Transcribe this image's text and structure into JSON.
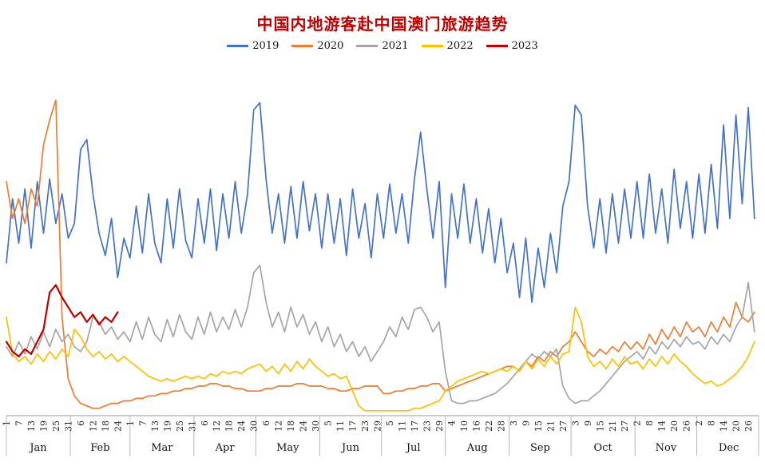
{
  "chart_data": {
    "type": "line",
    "title": "中国内地游客赴中国澳门旅游趋势",
    "title_color": "#c00000",
    "legend": {
      "position": "top",
      "labels": [
        "2019",
        "2020",
        "2021",
        "2022",
        "2023"
      ]
    },
    "x_axis": {
      "kind": "day-of-year",
      "total_days": 366,
      "months": [
        "Jan",
        "Feb",
        "Mar",
        "Apr",
        "May",
        "Jun",
        "Jul",
        "Aug",
        "Sep",
        "Oct",
        "Nov",
        "Dec"
      ],
      "month_start_days": [
        1,
        32,
        61,
        92,
        122,
        153,
        183,
        214,
        245,
        275,
        306,
        336
      ],
      "tick_days": [
        1,
        7,
        13,
        19,
        25,
        31,
        37,
        43,
        49,
        55,
        61,
        67,
        73,
        79,
        85,
        91,
        97,
        103,
        109,
        115,
        121,
        127,
        133,
        139,
        145,
        151,
        157,
        163,
        169,
        175,
        181,
        187,
        193,
        199,
        205,
        211,
        217,
        223,
        229,
        235,
        241,
        247,
        253,
        259,
        265,
        271,
        277,
        283,
        289,
        295,
        301,
        307,
        313,
        319,
        325,
        331,
        337,
        343,
        349,
        355,
        361
      ],
      "tick_labels": [
        "1",
        "7",
        "13",
        "19",
        "25",
        "31",
        "6",
        "12",
        "18",
        "24",
        "1",
        "7",
        "13",
        "19",
        "25",
        "31",
        "6",
        "12",
        "18",
        "24",
        "30",
        "6",
        "12",
        "18",
        "24",
        "30",
        "5",
        "11",
        "17",
        "23",
        "29",
        "5",
        "11",
        "17",
        "23",
        "29",
        "4",
        "10",
        "16",
        "22",
        "28",
        "3",
        "9",
        "15",
        "21",
        "27",
        "3",
        "9",
        "15",
        "21",
        "27",
        "2",
        "8",
        "14",
        "20",
        "26",
        "2",
        "8",
        "14",
        "20",
        "26"
      ]
    },
    "y_axis": {
      "visible": false,
      "plot_min": 0,
      "plot_max": 132
    },
    "grid": false,
    "sampling": {
      "start_day": 1,
      "step_days": 3
    },
    "series": [
      {
        "name": "2019",
        "color": "#4472c4",
        "stroke_width": 1.7,
        "values": [
          62,
          88,
          70,
          92,
          68,
          95,
          74,
          96,
          78,
          90,
          72,
          78,
          108,
          112,
          90,
          74,
          65,
          80,
          56,
          72,
          64,
          85,
          66,
          90,
          70,
          62,
          88,
          68,
          92,
          71,
          64,
          88,
          70,
          92,
          67,
          90,
          72,
          95,
          74,
          90,
          124,
          127,
          96,
          74,
          90,
          70,
          93,
          72,
          95,
          75,
          90,
          68,
          90,
          70,
          88,
          65,
          92,
          72,
          86,
          64,
          90,
          72,
          94,
          74,
          90,
          70,
          96,
          115,
          92,
          72,
          95,
          52,
          90,
          72,
          94,
          70,
          88,
          66,
          84,
          62,
          80,
          58,
          70,
          48,
          72,
          46,
          68,
          52,
          74,
          58,
          85,
          95,
          126,
          122,
          85,
          68,
          88,
          66,
          90,
          70,
          92,
          72,
          95,
          72,
          98,
          74,
          92,
          70,
          100,
          76,
          95,
          72,
          98,
          74,
          102,
          76,
          118,
          80,
          122,
          86,
          125,
          80
        ]
      },
      {
        "name": "2020",
        "color": "#ed7d31",
        "stroke_width": 1.7,
        "values": [
          95,
          80,
          88,
          78,
          92,
          85,
          110,
          120,
          128,
          40,
          15,
          8,
          5,
          4,
          3,
          3,
          4,
          5,
          5,
          6,
          6,
          7,
          7,
          8,
          8,
          9,
          9,
          10,
          10,
          11,
          11,
          12,
          12,
          13,
          13,
          12,
          12,
          11,
          11,
          10,
          10,
          10,
          11,
          11,
          12,
          12,
          12,
          13,
          13,
          12,
          12,
          12,
          11,
          11,
          10,
          10,
          11,
          11,
          12,
          12,
          12,
          9,
          9,
          10,
          10,
          11,
          11,
          12,
          12,
          13,
          13,
          10,
          11,
          12,
          13,
          14,
          15,
          16,
          17,
          18,
          19,
          20,
          20,
          18,
          22,
          20,
          24,
          22,
          26,
          24,
          28,
          30,
          34,
          30,
          26,
          24,
          27,
          25,
          28,
          26,
          30,
          27,
          30,
          27,
          33,
          29,
          35,
          31,
          36,
          32,
          38,
          34,
          36,
          32,
          38,
          34,
          40,
          36,
          46,
          40,
          38,
          42
        ]
      },
      {
        "name": "2021",
        "color": "#a5a5a5",
        "stroke_width": 1.7,
        "values": [
          28,
          24,
          30,
          25,
          32,
          27,
          34,
          28,
          35,
          30,
          33,
          28,
          26,
          30,
          40,
          38,
          33,
          36,
          31,
          34,
          30,
          38,
          31,
          40,
          33,
          30,
          39,
          32,
          41,
          34,
          31,
          40,
          33,
          42,
          34,
          40,
          35,
          43,
          36,
          44,
          58,
          61,
          46,
          36,
          42,
          34,
          44,
          36,
          41,
          33,
          38,
          30,
          36,
          28,
          33,
          26,
          30,
          24,
          28,
          22,
          26,
          30,
          36,
          32,
          40,
          35,
          43,
          44,
          40,
          34,
          38,
          18,
          6,
          5,
          5,
          6,
          6,
          7,
          8,
          9,
          11,
          13,
          16,
          19,
          22,
          25,
          23,
          26,
          24,
          27,
          12,
          7,
          5,
          6,
          6,
          8,
          10,
          13,
          16,
          19,
          22,
          24,
          26,
          23,
          28,
          25,
          30,
          27,
          31,
          28,
          32,
          29,
          30,
          27,
          32,
          29,
          33,
          30,
          36,
          40,
          54,
          34
        ]
      },
      {
        "name": "2022",
        "color": "#ffc000",
        "stroke_width": 1.7,
        "values": [
          40,
          25,
          22,
          24,
          21,
          25,
          22,
          26,
          23,
          27,
          24,
          35,
          32,
          27,
          24,
          26,
          23,
          25,
          22,
          24,
          22,
          20,
          18,
          16,
          15,
          14,
          15,
          14,
          15,
          16,
          15,
          16,
          15,
          17,
          16,
          18,
          17,
          18,
          17,
          19,
          20,
          21,
          18,
          20,
          17,
          21,
          18,
          22,
          19,
          23,
          20,
          18,
          16,
          17,
          15,
          16,
          10,
          4,
          2,
          2,
          2,
          2,
          2,
          2,
          2,
          2,
          3,
          3,
          4,
          5,
          6,
          10,
          12,
          14,
          15,
          16,
          17,
          18,
          17,
          18,
          19,
          18,
          20,
          18,
          22,
          19,
          23,
          20,
          24,
          21,
          25,
          26,
          44,
          38,
          24,
          20,
          22,
          19,
          23,
          20,
          24,
          21,
          22,
          19,
          23,
          20,
          24,
          21,
          25,
          22,
          20,
          17,
          15,
          13,
          14,
          12,
          13,
          15,
          17,
          20,
          24,
          30
        ]
      },
      {
        "name": "2023",
        "color": "#c00000",
        "stroke_width": 2.2,
        "values": [
          30,
          26,
          24,
          27,
          25,
          30,
          35,
          50,
          53,
          48,
          44,
          40,
          42,
          38,
          41,
          37,
          40,
          38,
          42
        ]
      }
    ]
  }
}
